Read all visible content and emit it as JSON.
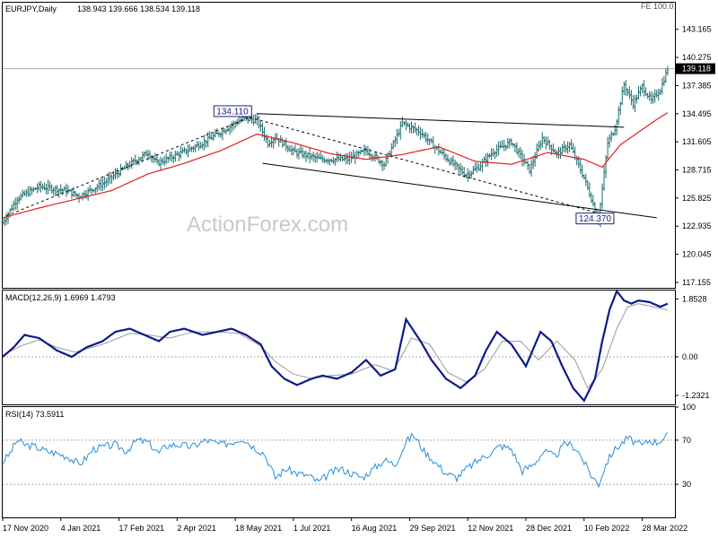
{
  "chart_data": [
    {
      "type": "ohlc",
      "title": "EURJPY,Daily",
      "ohlc_label": "138.943 139.666 138.534 139.118",
      "corner_label": "FE 100.0",
      "watermark": "ActionForex.com",
      "last_price": 139.118,
      "last_price_label": "139.118",
      "yticks": [
        117.155,
        120.045,
        122.935,
        125.825,
        128.715,
        131.605,
        134.495,
        137.385,
        140.275,
        143.165
      ],
      "ytick_labels": [
        "117.155",
        "120.045",
        "122.935",
        "125.825",
        "128.715",
        "131.605",
        "134.495",
        "137.385",
        "140.275",
        "143.165"
      ],
      "ylim": [
        116.6,
        145.9
      ],
      "xlim": [
        0,
        370
      ],
      "x_axis": {
        "ticks": [
          0,
          32,
          64,
          96,
          128,
          160,
          192,
          224,
          256,
          288,
          320,
          352
        ],
        "labels": [
          "17 Nov 2020",
          "4 Jan 2021",
          "17 Feb 2021",
          "2 Apr 2021",
          "18 May 2021",
          "1 Jul 2021",
          "16 Aug 2021",
          "29 Sep 2021",
          "12 Nov 2021",
          "28 Dec 2021",
          "10 Feb 2022",
          "28 Mar 2022"
        ]
      },
      "price_anchors": {
        "x": [
          0,
          8,
          20,
          35,
          42,
          55,
          70,
          80,
          85,
          100,
          110,
          120,
          132,
          140,
          146,
          150,
          160,
          175,
          190,
          200,
          210,
          220,
          230,
          236,
          245,
          255,
          262,
          270,
          280,
          290,
          297,
          305,
          312,
          320,
          328,
          333,
          337,
          342,
          347,
          352,
          357,
          362,
          366
        ],
        "y": [
          123.3,
          125.8,
          127.0,
          126.6,
          126.0,
          127.3,
          129.3,
          130.5,
          129.4,
          130.6,
          131.5,
          132.6,
          134.0,
          133.8,
          131.5,
          132.1,
          130.6,
          129.8,
          129.8,
          130.7,
          129.3,
          133.5,
          132.6,
          131.4,
          129.8,
          128.2,
          129.0,
          130.6,
          131.6,
          128.7,
          132.0,
          130.4,
          131.3,
          127.9,
          123.6,
          131.5,
          133.0,
          137.5,
          135.5,
          137.3,
          135.8,
          137.0,
          139.1
        ]
      },
      "sma": {
        "x": [
          0,
          20,
          40,
          60,
          80,
          100,
          120,
          140,
          160,
          180,
          200,
          220,
          240,
          260,
          280,
          300,
          320,
          330,
          340,
          350,
          360,
          366
        ],
        "y": [
          123.8,
          124.8,
          125.7,
          126.6,
          128.3,
          129.4,
          130.7,
          132.4,
          131.5,
          130.4,
          129.8,
          130.3,
          131.1,
          129.6,
          129.3,
          130.5,
          129.8,
          129.0,
          131.3,
          132.6,
          133.9,
          134.6
        ]
      },
      "annotations": [
        {
          "text": "134.110",
          "x": 136,
          "y": 134.11
        },
        {
          "text": "124.370",
          "x": 326,
          "y": 124.37
        }
      ],
      "lines": [
        {
          "style": "solid",
          "x": [
            140,
            342
          ],
          "y": [
            134.5,
            133.1
          ]
        },
        {
          "style": "solid",
          "x": [
            143,
            360
          ],
          "y": [
            129.4,
            123.8
          ]
        },
        {
          "style": "dashed",
          "x": [
            2,
            136
          ],
          "y": [
            124.0,
            134.11
          ]
        },
        {
          "style": "dashed",
          "x": [
            136,
            326
          ],
          "y": [
            134.11,
            124.37
          ]
        }
      ]
    },
    {
      "type": "line",
      "title": "MACD(12,26,9) 1.6969 1.4793",
      "ylim": [
        -1.52,
        2.12
      ],
      "yticks": [
        -1.2321,
        0.0,
        1.8528
      ],
      "ytick_labels": [
        "-1.2321",
        "0.00",
        "1.8528"
      ],
      "series": [
        {
          "x": [
            0,
            6,
            12,
            20,
            30,
            38,
            46,
            55,
            62,
            70,
            78,
            86,
            92,
            100,
            110,
            118,
            126,
            134,
            142,
            148,
            155,
            162,
            170,
            176,
            184,
            192,
            200,
            208,
            216,
            222,
            230,
            236,
            244,
            252,
            260,
            266,
            272,
            280,
            288,
            296,
            302,
            308,
            314,
            320,
            326,
            330,
            334,
            338,
            342,
            346,
            350,
            356,
            362,
            366
          ],
          "y": [
            0.0,
            0.3,
            0.7,
            0.6,
            0.2,
            0.0,
            0.3,
            0.5,
            0.8,
            0.9,
            0.7,
            0.5,
            0.8,
            0.9,
            0.7,
            0.8,
            0.9,
            0.7,
            0.4,
            -0.3,
            -0.7,
            -0.9,
            -0.7,
            -0.6,
            -0.7,
            -0.5,
            -0.1,
            -0.6,
            -0.4,
            1.2,
            0.5,
            -0.1,
            -0.7,
            -1.0,
            -0.6,
            0.2,
            0.8,
            0.4,
            -0.3,
            0.8,
            0.5,
            -0.3,
            -1.0,
            -1.4,
            -0.7,
            0.5,
            1.5,
            2.1,
            1.8,
            1.7,
            1.8,
            1.75,
            1.6,
            1.7
          ]
        },
        {
          "x": [
            0,
            10,
            20,
            30,
            40,
            55,
            70,
            80,
            92,
            105,
            118,
            130,
            142,
            150,
            160,
            170,
            180,
            192,
            205,
            215,
            225,
            235,
            245,
            255,
            265,
            275,
            285,
            295,
            305,
            315,
            322,
            330,
            338,
            344,
            350,
            358,
            366
          ],
          "y": [
            0.05,
            0.35,
            0.55,
            0.3,
            0.15,
            0.4,
            0.75,
            0.7,
            0.6,
            0.8,
            0.8,
            0.75,
            0.35,
            -0.15,
            -0.55,
            -0.7,
            -0.6,
            -0.55,
            -0.25,
            -0.45,
            0.6,
            0.4,
            -0.5,
            -0.8,
            -0.4,
            0.5,
            0.5,
            -0.1,
            0.5,
            -0.1,
            -1.0,
            -0.4,
            0.9,
            1.6,
            1.7,
            1.6,
            1.5
          ]
        }
      ]
    },
    {
      "type": "line",
      "title": "RSI(14) 73.5911",
      "ylim": [
        0,
        100
      ],
      "yticks": [
        30,
        70,
        100
      ],
      "ytick_labels": [
        "30",
        "70",
        "100"
      ],
      "series": [
        {
          "x": [
            0,
            4,
            8,
            12,
            18,
            24,
            30,
            36,
            42,
            46,
            50,
            56,
            62,
            68,
            74,
            80,
            86,
            90,
            96,
            104,
            112,
            120,
            126,
            132,
            138,
            144,
            150,
            156,
            162,
            168,
            174,
            180,
            186,
            192,
            198,
            204,
            210,
            216,
            222,
            226,
            232,
            238,
            244,
            250,
            256,
            262,
            268,
            274,
            280,
            286,
            292,
            298,
            304,
            310,
            316,
            320,
            324,
            328,
            332,
            336,
            340,
            344,
            348,
            352,
            356,
            360,
            366
          ],
          "y": [
            50,
            58,
            70,
            66,
            64,
            60,
            58,
            55,
            48,
            54,
            62,
            64,
            66,
            60,
            70,
            68,
            58,
            65,
            66,
            64,
            70,
            66,
            68,
            72,
            64,
            58,
            36,
            44,
            40,
            38,
            32,
            40,
            44,
            40,
            36,
            44,
            52,
            48,
            68,
            75,
            60,
            50,
            40,
            36,
            45,
            52,
            58,
            65,
            62,
            42,
            48,
            60,
            55,
            68,
            62,
            50,
            38,
            30,
            48,
            60,
            66,
            72,
            68,
            65,
            70,
            68,
            74
          ]
        }
      ]
    }
  ]
}
